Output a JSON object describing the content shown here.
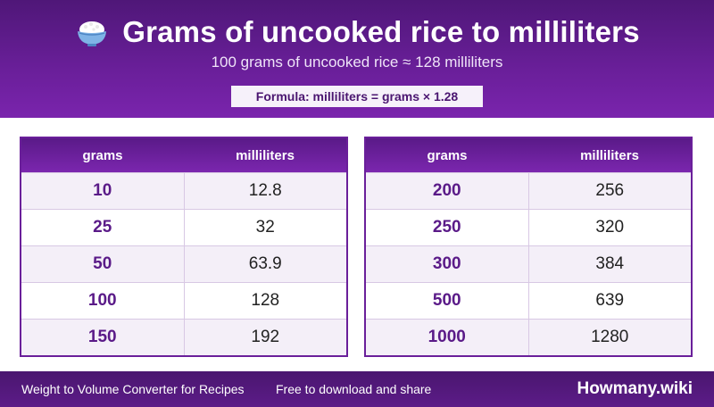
{
  "header": {
    "title": "Grams of uncooked rice to milliliters",
    "subtitle": "100 grams of uncooked rice ≈ 128 milliliters",
    "formula": "Formula: milliliters = grams × 1.28"
  },
  "tables": [
    {
      "col_grams": "grams",
      "col_ml": "milliliters",
      "rows": [
        {
          "grams": "10",
          "ml": "12.8"
        },
        {
          "grams": "25",
          "ml": "32"
        },
        {
          "grams": "50",
          "ml": "63.9"
        },
        {
          "grams": "100",
          "ml": "128"
        },
        {
          "grams": "150",
          "ml": "192"
        }
      ]
    },
    {
      "col_grams": "grams",
      "col_ml": "milliliters",
      "rows": [
        {
          "grams": "200",
          "ml": "256"
        },
        {
          "grams": "250",
          "ml": "320"
        },
        {
          "grams": "300",
          "ml": "384"
        },
        {
          "grams": "500",
          "ml": "639"
        },
        {
          "grams": "1000",
          "ml": "1280"
        }
      ]
    }
  ],
  "footer": {
    "left_text": "Weight to Volume Converter for Recipes",
    "middle_text": "Free to download and share",
    "brand": "Howmany.wiki"
  },
  "icons": {
    "title_icon": "rice-bowl-icon"
  }
}
